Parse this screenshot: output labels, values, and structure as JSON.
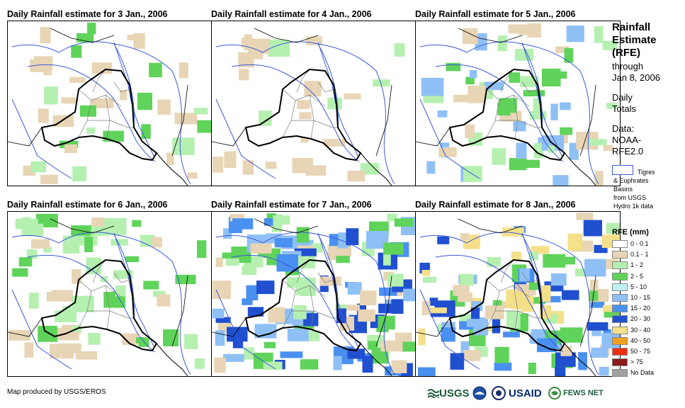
{
  "panels": [
    {
      "title": "Daily Rainfall estimate for 3 Jan., 2006"
    },
    {
      "title": "Daily Rainfall estimate for 4 Jan., 2006"
    },
    {
      "title": "Daily Rainfall estimate for 5 Jan., 2006"
    },
    {
      "title": "Daily Rainfall estimate for 6 Jan., 2006"
    },
    {
      "title": "Daily Rainfall estimate for 7 Jan., 2006"
    },
    {
      "title": "Daily Rainfall estimate for 8 Jan., 2006"
    }
  ],
  "sidebar": {
    "title_1": "Rainfall",
    "title_2": "Estimate",
    "title_3": "(RFE)",
    "through": "through",
    "date": "Jan 8, 2006",
    "daily_1": "Daily",
    "daily_2": "Totals",
    "data_1": "Data:",
    "data_2": "NOAA-",
    "data_3": "RFE2.0",
    "basin_1": "Tigres",
    "basin_2": "& Euphrates",
    "basin_3": "Basins",
    "basin_4": "from USGS",
    "basin_5": "Hydro 1k data",
    "basin_color": "#3b5bdb"
  },
  "legend": {
    "title": "RFE (mm)",
    "items": [
      {
        "label": "0 - 0.1",
        "color": "#ffffff"
      },
      {
        "label": "0.1 - 1",
        "color": "#e8d5b5"
      },
      {
        "label": "1 - 2",
        "color": "#b5f0b0"
      },
      {
        "label": "2 - 5",
        "color": "#5fd35a"
      },
      {
        "label": "5 - 10",
        "color": "#bff0f0"
      },
      {
        "label": "10 - 15",
        "color": "#8fc0f5"
      },
      {
        "label": "15 - 20",
        "color": "#4a90f0"
      },
      {
        "label": "20 - 30",
        "color": "#2050d0"
      },
      {
        "label": "30 - 40",
        "color": "#f5e08a"
      },
      {
        "label": "40 - 50",
        "color": "#f0a020"
      },
      {
        "label": "50 - 75",
        "color": "#e83010"
      },
      {
        "label": "> 75",
        "color": "#8b1a1a"
      },
      {
        "label": "No Data",
        "color": "#a0a0a0"
      }
    ]
  },
  "footer": {
    "credit": "Map produced by USGS/EROS",
    "logo_usgs": "USGS",
    "logo_usaid": "USAID",
    "logo_fews": "FEWS NET"
  }
}
